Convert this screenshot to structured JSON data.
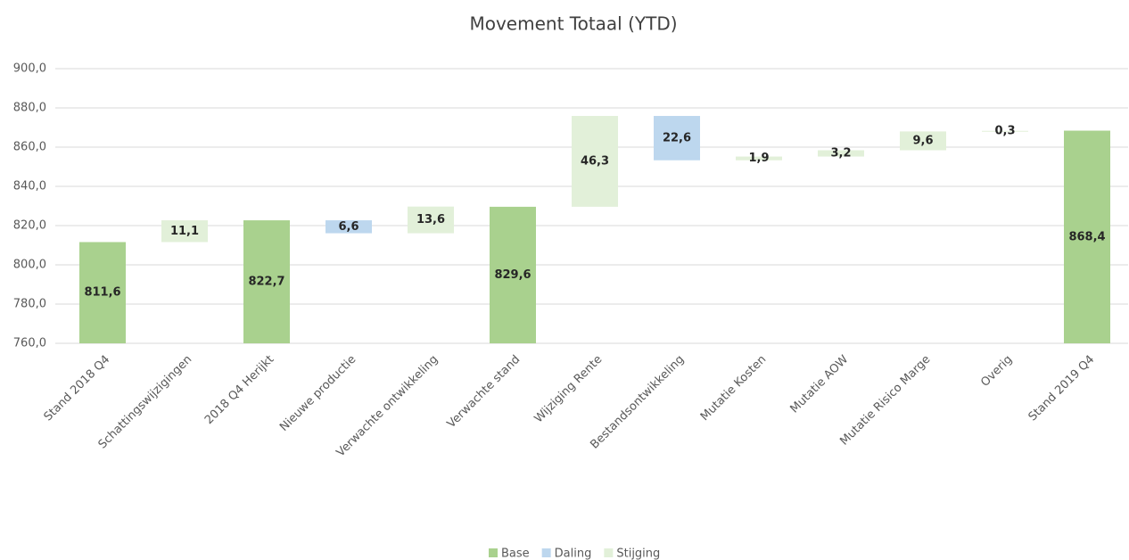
{
  "chart_data": {
    "type": "waterfall",
    "title": "Movement Totaal (YTD)",
    "categories": [
      "Stand 2018 Q4",
      "Schattingswijzigingen",
      "2018 Q4 Herijkt",
      "Nieuwe productie",
      "Verwachte ontwikkeling",
      "Verwachte stand",
      "Wijziging Rente",
      "Bestandsontwikkeling",
      "Mutatie Kosten",
      "Mutatie AOW",
      "Mutatie Risico Marge",
      "Overig",
      "Stand 2019 Q4"
    ],
    "series": [
      {
        "name": "Base",
        "color": "#a9d18e",
        "role": "base",
        "values": [
          811.6,
          null,
          822.7,
          null,
          null,
          829.6,
          null,
          null,
          null,
          null,
          null,
          null,
          868.4
        ],
        "value_labels": [
          "811,6",
          null,
          "822,7",
          null,
          null,
          "829,6",
          null,
          null,
          null,
          null,
          null,
          null,
          "868,4"
        ]
      },
      {
        "name": "Daling",
        "color": "#bdd7ee",
        "role": "decrease",
        "values": [
          null,
          null,
          null,
          6.6,
          null,
          null,
          null,
          22.6,
          null,
          null,
          null,
          null,
          null
        ],
        "value_labels": [
          null,
          null,
          null,
          "6,6",
          null,
          null,
          null,
          "22,6",
          null,
          null,
          null,
          null,
          null
        ]
      },
      {
        "name": "Stijging",
        "color": "#e2f0d9",
        "role": "increase",
        "values": [
          null,
          11.1,
          null,
          null,
          13.6,
          null,
          46.3,
          null,
          1.9,
          3.2,
          9.6,
          0.3,
          null
        ],
        "value_labels": [
          null,
          "11,1",
          null,
          null,
          "13,6",
          null,
          "46,3",
          null,
          "1,9",
          "3,2",
          "9,6",
          "0,3",
          null
        ]
      }
    ],
    "ylim": [
      760,
      900
    ],
    "yticks": [
      {
        "value": 760,
        "label": "760,0"
      },
      {
        "value": 780,
        "label": "780,0"
      },
      {
        "value": 800,
        "label": "800,0"
      },
      {
        "value": 820,
        "label": "820,0"
      },
      {
        "value": 840,
        "label": "840,0"
      },
      {
        "value": 860,
        "label": "860,0"
      },
      {
        "value": 880,
        "label": "880,0"
      },
      {
        "value": 900,
        "label": "900,0"
      }
    ],
    "grid": true,
    "legend": "bottom"
  }
}
